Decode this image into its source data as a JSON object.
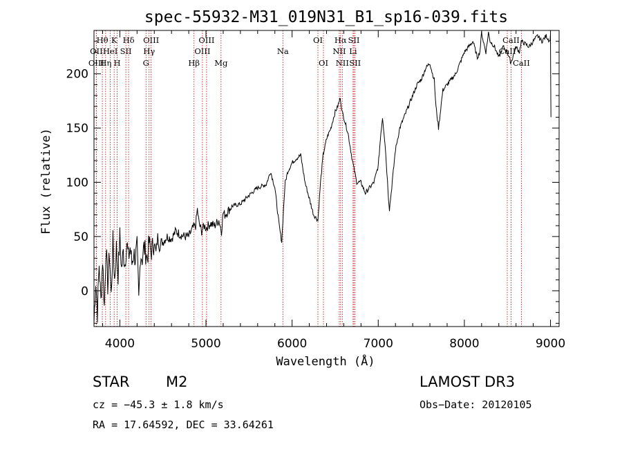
{
  "chart_data": {
    "type": "line",
    "title": "spec-55932-M31_019N31_B1_sp16-039.fits",
    "xlabel": "Wavelength (Å)",
    "ylabel": "Flux (relative)",
    "xlim": [
      3700,
      9100
    ],
    "ylim": [
      -33,
      240
    ],
    "xticks": [
      4000,
      5000,
      6000,
      7000,
      8000,
      9000
    ],
    "yticks": [
      0,
      50,
      100,
      150,
      200
    ],
    "series": [
      {
        "name": "flux",
        "x": [
          3700,
          3720,
          3740,
          3760,
          3780,
          3800,
          3820,
          3840,
          3860,
          3880,
          3900,
          3920,
          3940,
          3960,
          3980,
          4000,
          4020,
          4040,
          4060,
          4080,
          4100,
          4120,
          4140,
          4160,
          4180,
          4200,
          4220,
          4240,
          4260,
          4280,
          4300,
          4320,
          4340,
          4360,
          4380,
          4400,
          4420,
          4440,
          4460,
          4480,
          4500,
          4550,
          4600,
          4650,
          4700,
          4750,
          4800,
          4850,
          4880,
          4900,
          4920,
          4950,
          4980,
          5000,
          5050,
          5100,
          5150,
          5180,
          5200,
          5220,
          5300,
          5400,
          5500,
          5600,
          5700,
          5750,
          5800,
          5850,
          5880,
          5900,
          5920,
          5950,
          6000,
          6050,
          6100,
          6150,
          6200,
          6250,
          6300,
          6330,
          6360,
          6400,
          6450,
          6500,
          6530,
          6560,
          6580,
          6600,
          6650,
          6700,
          6750,
          6800,
          6850,
          6900,
          6950,
          7000,
          7030,
          7050,
          7080,
          7100,
          7120,
          7130,
          7150,
          7200,
          7250,
          7300,
          7350,
          7400,
          7450,
          7500,
          7550,
          7600,
          7630,
          7650,
          7670,
          7700,
          7750,
          7800,
          7850,
          7900,
          7950,
          8000,
          8050,
          8100,
          8150,
          8180,
          8200,
          8220,
          8250,
          8280,
          8300,
          8350,
          8400,
          8450,
          8500,
          8540,
          8560,
          8600,
          8640,
          8660,
          8700,
          8750,
          8800,
          8850,
          8900,
          8950,
          8990,
          9000,
          9005
        ],
        "y": [
          -30,
          10,
          -20,
          25,
          -10,
          30,
          -15,
          40,
          5,
          35,
          -5,
          45,
          10,
          40,
          15,
          50,
          20,
          35,
          25,
          45,
          30,
          40,
          25,
          35,
          30,
          40,
          -10,
          35,
          30,
          40,
          35,
          30,
          45,
          35,
          40,
          45,
          35,
          50,
          40,
          45,
          45,
          50,
          48,
          55,
          52,
          50,
          50,
          58,
          60,
          75,
          62,
          55,
          60,
          58,
          62,
          60,
          65,
          55,
          72,
          70,
          78,
          80,
          88,
          95,
          98,
          110,
          95,
          60,
          45,
          75,
          100,
          110,
          118,
          122,
          125,
          100,
          85,
          70,
          65,
          100,
          125,
          140,
          150,
          165,
          170,
          178,
          165,
          160,
          145,
          120,
          100,
          100,
          90,
          95,
          100,
          115,
          145,
          160,
          135,
          110,
          85,
          75,
          90,
          130,
          150,
          160,
          170,
          180,
          190,
          195,
          205,
          210,
          200,
          195,
          170,
          150,
          185,
          190,
          195,
          200,
          210,
          220,
          225,
          230,
          215,
          220,
          238,
          230,
          220,
          238,
          230,
          225,
          215,
          225,
          220,
          210,
          215,
          225,
          220,
          230,
          228,
          225,
          230,
          235,
          230,
          235,
          230,
          235,
          160
        ]
      }
    ],
    "spectral_lines": [
      {
        "label": "Hθ",
        "x": 3797,
        "row": 1
      },
      {
        "label": "OII",
        "x": 3727,
        "row": 2
      },
      {
        "label": "OIII",
        "x": 3727,
        "row": 3
      },
      {
        "label": "K",
        "x": 3934,
        "row": 1
      },
      {
        "label": "HeI",
        "x": 3889,
        "row": 2
      },
      {
        "label": "Hη",
        "x": 3835,
        "row": 3
      },
      {
        "label": "Hδ",
        "x": 4102,
        "row": 1
      },
      {
        "label": "SII",
        "x": 4070,
        "row": 2
      },
      {
        "label": "H",
        "x": 3969,
        "row": 3
      },
      {
        "label": "OIII",
        "x": 4363,
        "row": 1
      },
      {
        "label": "Hγ",
        "x": 4340,
        "row": 2
      },
      {
        "label": "G",
        "x": 4304,
        "row": 3
      },
      {
        "label": "OIII",
        "x": 5007,
        "row": 1
      },
      {
        "label": "OIII",
        "x": 4959,
        "row": 2
      },
      {
        "label": "Hβ",
        "x": 4861,
        "row": 3
      },
      {
        "label": "Mg",
        "x": 5175,
        "row": 3
      },
      {
        "label": "Na",
        "x": 5893,
        "row": 2
      },
      {
        "label": "OI",
        "x": 6300,
        "row": 1
      },
      {
        "label": "OI",
        "x": 6364,
        "row": 3
      },
      {
        "label": "Hα",
        "x": 6563,
        "row": 1
      },
      {
        "label": "NII",
        "x": 6548,
        "row": 2
      },
      {
        "label": "NII",
        "x": 6583,
        "row": 3
      },
      {
        "label": "SII",
        "x": 6717,
        "row": 1
      },
      {
        "label": "Li",
        "x": 6708,
        "row": 2
      },
      {
        "label": "SII",
        "x": 6731,
        "row": 3
      },
      {
        "label": "CaII",
        "x": 8542,
        "row": 1
      },
      {
        "label": "CaII",
        "x": 8498,
        "row": 2
      },
      {
        "label": "CaII",
        "x": 8662,
        "row": 3
      }
    ],
    "line_marker_color": "#c00000",
    "plot_color": "#000000"
  },
  "info": {
    "object_class": "STAR",
    "subclass": "M2",
    "survey": "LAMOST DR3",
    "velocity": "cz = −45.3 ± 1.8 km/s",
    "obs_date": "Obs−Date: 20120105",
    "coords": "RA =  17.64592, DEC =  33.64261"
  }
}
